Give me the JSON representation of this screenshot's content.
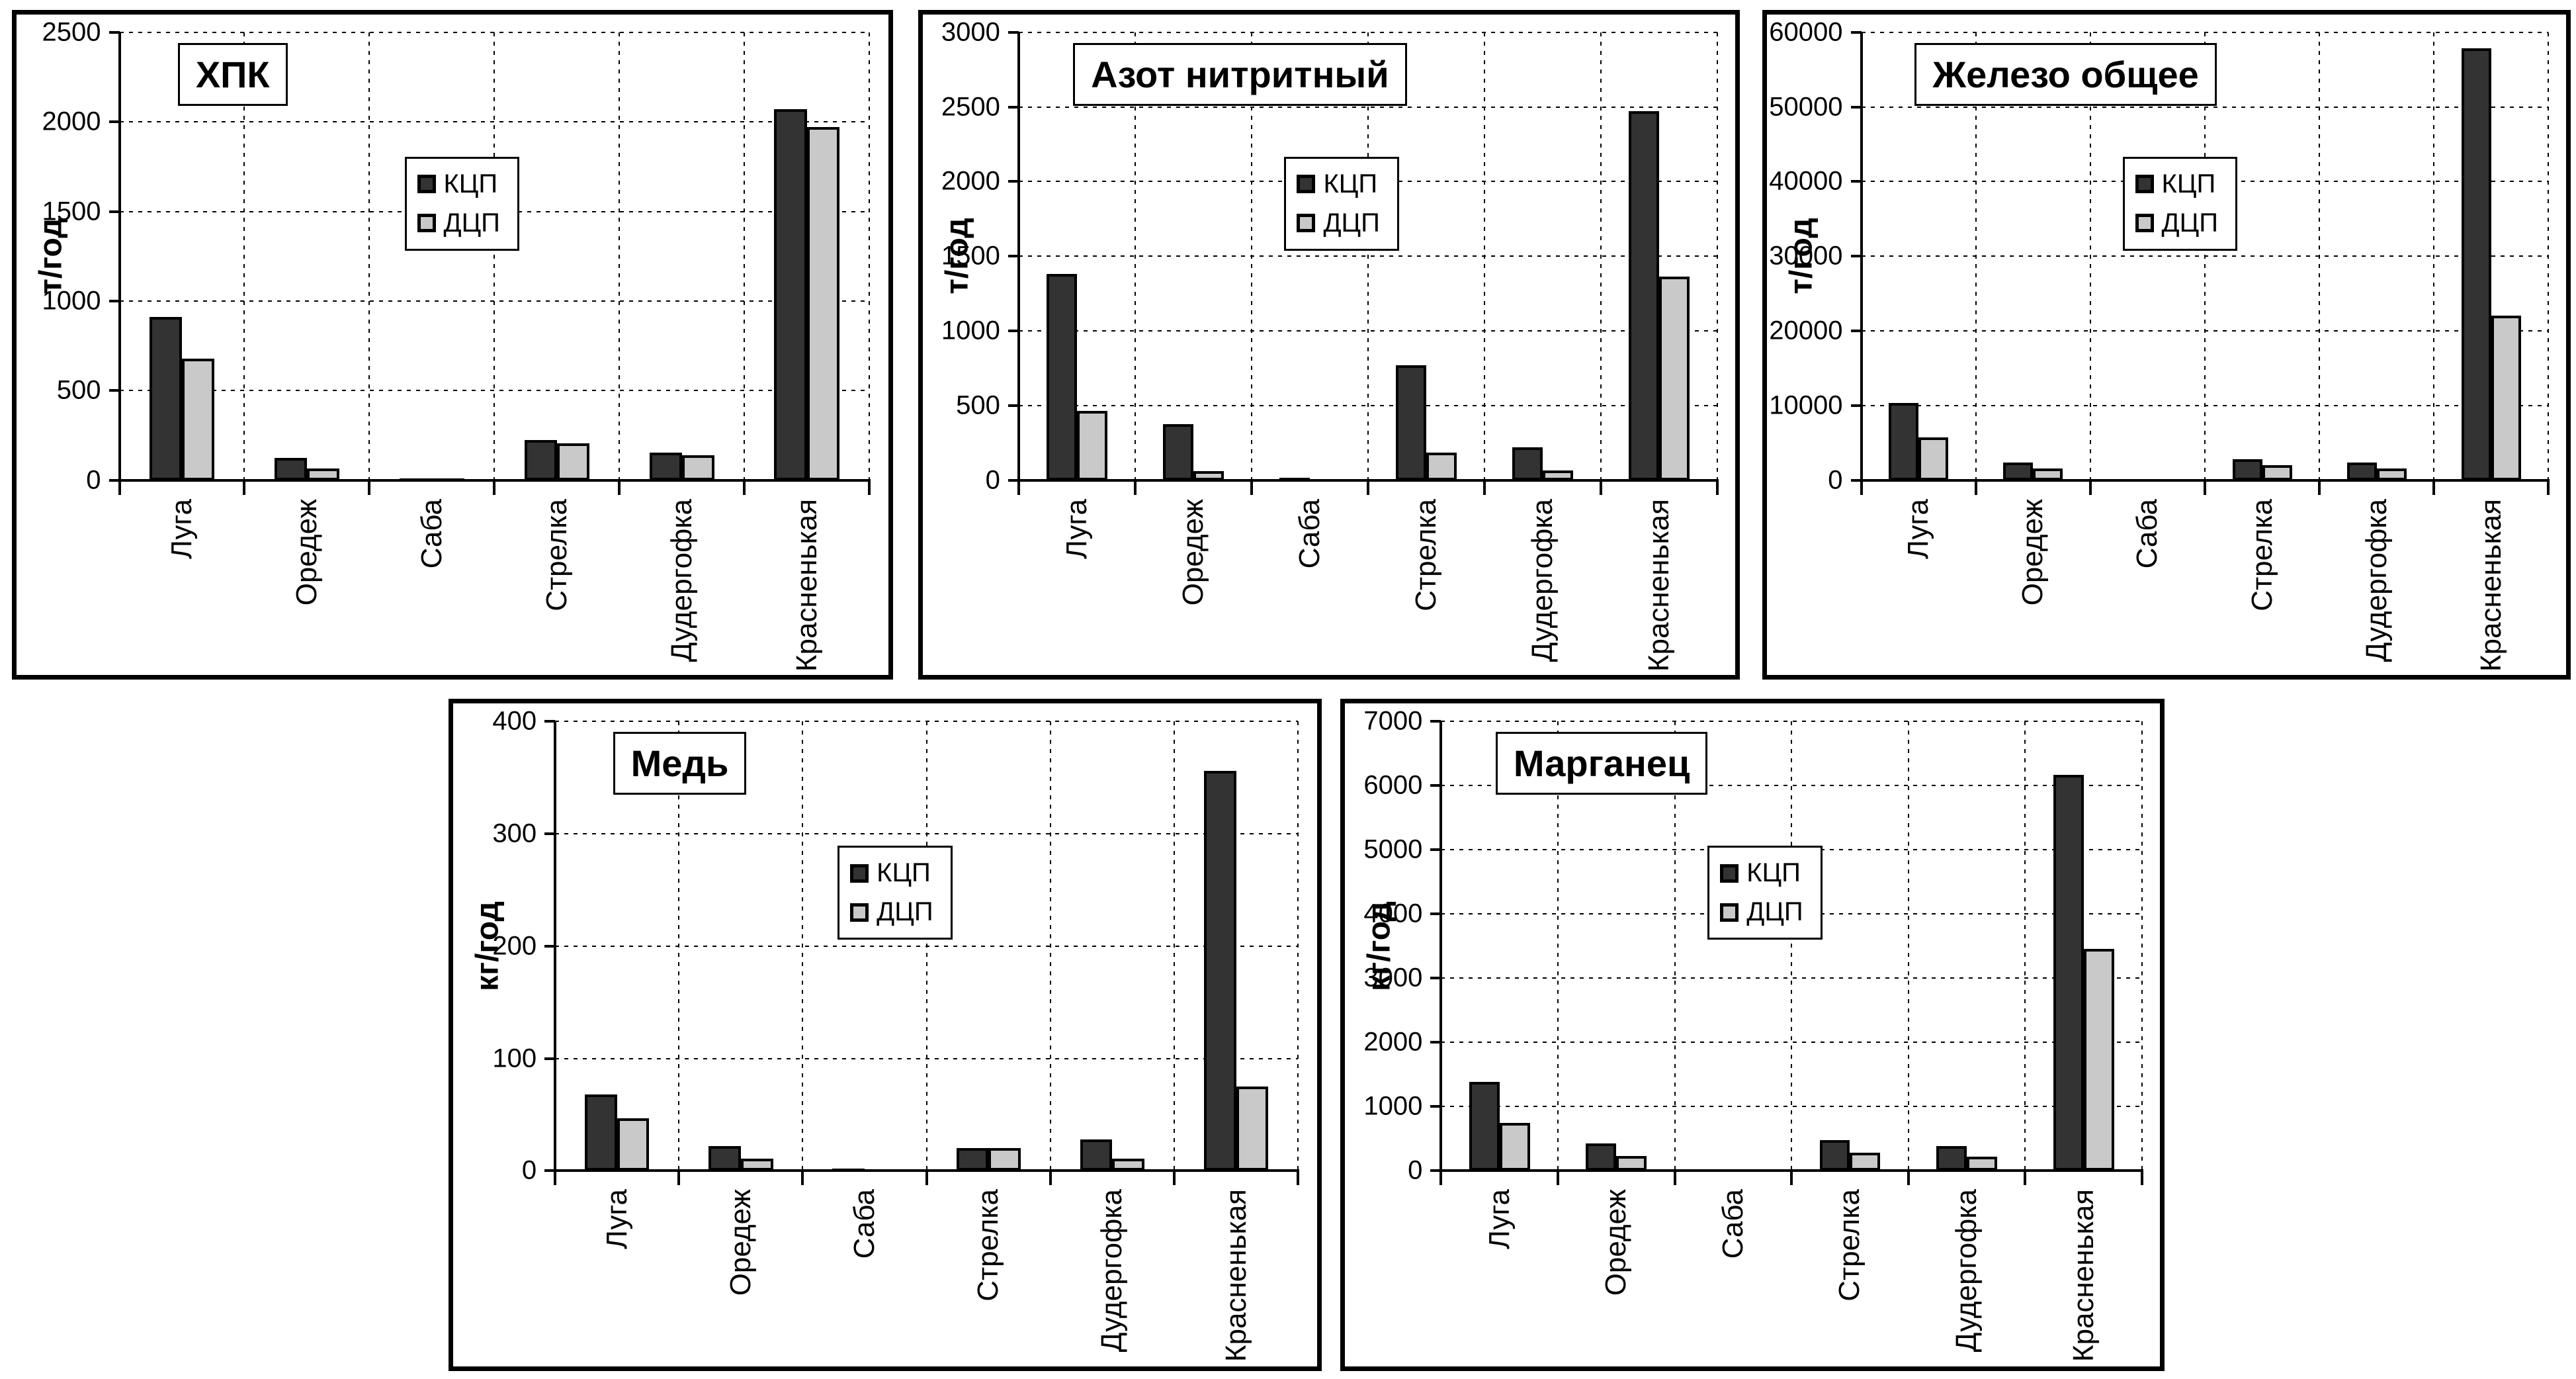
{
  "figure": {
    "series_labels": [
      "КЦП",
      "ДЦП"
    ],
    "categories": [
      "Луга",
      "Оредеж",
      "Саба",
      "Стрелка",
      "Дудергофка",
      "Красненькая"
    ],
    "colors": {
      "kcp_fill": "#333333",
      "dcp_fill": "#c9c9c9",
      "axis": "#000000",
      "background": "#ffffff"
    }
  },
  "chart_data": [
    {
      "type": "bar",
      "title": "ХПК",
      "ylabel": "т/год",
      "ylim": [
        0,
        2500
      ],
      "ytick_step": 500,
      "grid": true,
      "legend_position": "inside-center",
      "categories": [
        "Луга",
        "Оредеж",
        "Саба",
        "Стрелка",
        "Дудергофка",
        "Красненькая"
      ],
      "series": [
        {
          "name": "КЦП",
          "color": "#333333",
          "values": [
            910,
            125,
            10,
            225,
            155,
            2070
          ]
        },
        {
          "name": "ДЦП",
          "color": "#c9c9c9",
          "values": [
            680,
            65,
            8,
            205,
            140,
            1970
          ]
        }
      ]
    },
    {
      "type": "bar",
      "title": "Азот нитритный",
      "ylabel": "т/год",
      "ylim": [
        0,
        3000
      ],
      "ytick_step": 500,
      "grid": true,
      "legend_position": "inside-center",
      "categories": [
        "Луга",
        "Оредеж",
        "Саба",
        "Стрелка",
        "Дудергофка",
        "Красненькая"
      ],
      "series": [
        {
          "name": "КЦП",
          "color": "#333333",
          "values": [
            1380,
            375,
            15,
            770,
            220,
            2470
          ]
        },
        {
          "name": "ДЦП",
          "color": "#c9c9c9",
          "values": [
            465,
            60,
            3,
            185,
            65,
            1365
          ]
        }
      ]
    },
    {
      "type": "bar",
      "title": "Железо общее",
      "ylabel": "т/год",
      "ylim": [
        0,
        60000
      ],
      "ytick_step": 10000,
      "grid": true,
      "legend_position": "inside-center",
      "categories": [
        "Луга",
        "Оредеж",
        "Саба",
        "Стрелка",
        "Дудергофка",
        "Красненькая"
      ],
      "series": [
        {
          "name": "КЦП",
          "color": "#333333",
          "values": [
            10300,
            2400,
            100,
            2800,
            2400,
            57900
          ]
        },
        {
          "name": "ДЦП",
          "color": "#c9c9c9",
          "values": [
            5700,
            1600,
            70,
            2000,
            1600,
            22000
          ]
        }
      ]
    },
    {
      "type": "bar",
      "title": "Медь",
      "ylabel": "кг/год",
      "ylim": [
        0,
        400
      ],
      "ytick_step": 100,
      "grid": true,
      "legend_position": "inside-center",
      "categories": [
        "Луга",
        "Оредеж",
        "Саба",
        "Стрелка",
        "Дудергофка",
        "Красненькая"
      ],
      "series": [
        {
          "name": "КЦП",
          "color": "#333333",
          "values": [
            68,
            22,
            2,
            20,
            28,
            356
          ]
        },
        {
          "name": "ДЦП",
          "color": "#c9c9c9",
          "values": [
            47,
            11,
            0,
            20,
            11,
            75
          ]
        }
      ]
    },
    {
      "type": "bar",
      "title": "Марганец",
      "ylabel": "кг/год",
      "ylim": [
        0,
        7000
      ],
      "ytick_step": 1000,
      "grid": true,
      "legend_position": "inside-center",
      "categories": [
        "Луга",
        "Оредеж",
        "Саба",
        "Стрелка",
        "Дудергофка",
        "Красненькая"
      ],
      "series": [
        {
          "name": "КЦП",
          "color": "#333333",
          "values": [
            1390,
            430,
            25,
            480,
            385,
            6170
          ]
        },
        {
          "name": "ДЦП",
          "color": "#c9c9c9",
          "values": [
            750,
            230,
            5,
            285,
            225,
            3460
          ]
        }
      ]
    }
  ]
}
